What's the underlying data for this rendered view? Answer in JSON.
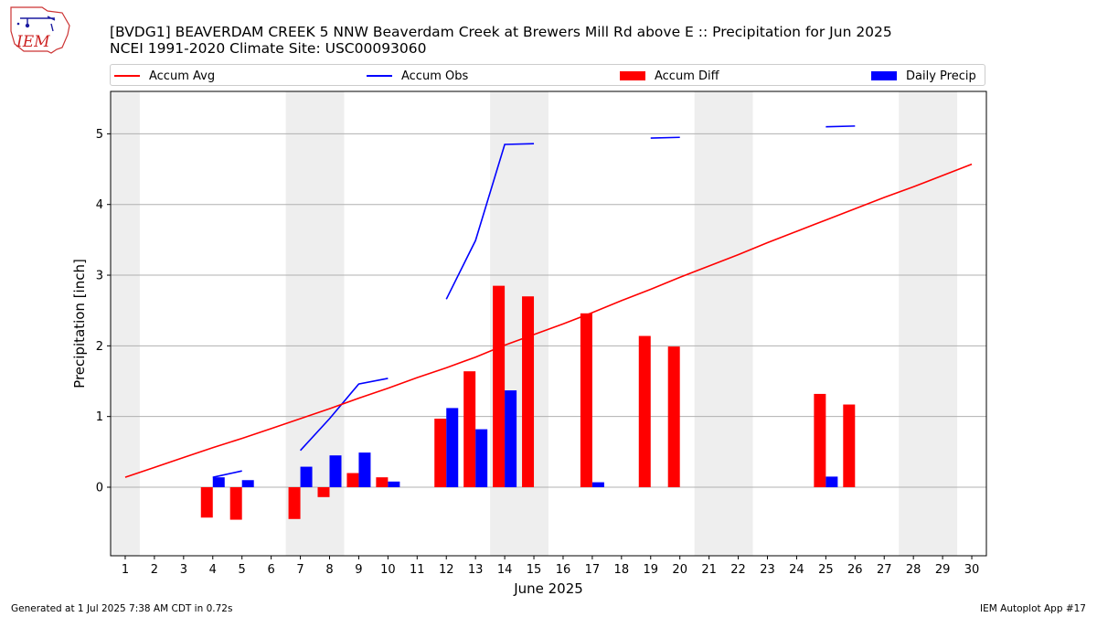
{
  "header": {
    "title_line1": "[BVDG1] BEAVERDAM CREEK 5 NNW Beaverdam Creek at Brewers Mill Rd above E :: Precipitation for Jun 2025",
    "title_line2": "NCEI 1991-2020 Climate Site: USC00093060",
    "logo_text": "IEM"
  },
  "footer": {
    "left": "Generated at 1 Jul 2025 7:38 AM CDT in 0.72s",
    "right": "IEM Autoplot App #17"
  },
  "colors": {
    "avg": "#ff0000",
    "obs": "#0000ff",
    "diff": "#ff0000",
    "daily": "#0000ff",
    "weekend": "#eeeeee",
    "grid": "#b0b0b0"
  },
  "chart_data": {
    "type": "bar",
    "xlabel": "June 2025",
    "ylabel": "Precipitation [inch]",
    "xlim": [
      0.5,
      30.5
    ],
    "ylim": [
      -0.97,
      5.6
    ],
    "x": [
      1,
      2,
      3,
      4,
      5,
      6,
      7,
      8,
      9,
      10,
      11,
      12,
      13,
      14,
      15,
      16,
      17,
      18,
      19,
      20,
      21,
      22,
      23,
      24,
      25,
      26,
      27,
      28,
      29,
      30
    ],
    "xticks": [
      "1",
      "2",
      "3",
      "4",
      "5",
      "6",
      "7",
      "8",
      "9",
      "10",
      "11",
      "12",
      "13",
      "14",
      "15",
      "16",
      "17",
      "18",
      "19",
      "20",
      "21",
      "22",
      "23",
      "24",
      "25",
      "26",
      "27",
      "28",
      "29",
      "30"
    ],
    "yticks": [
      0,
      1,
      2,
      3,
      4,
      5
    ],
    "grid": "y-major",
    "legend_position": "top",
    "weekend_shading": [
      [
        0.5,
        1.5
      ],
      [
        6.5,
        8.5
      ],
      [
        13.5,
        15.5
      ],
      [
        20.5,
        22.5
      ],
      [
        27.5,
        29.5
      ]
    ],
    "series": [
      {
        "name": "Accum Avg",
        "kind": "line",
        "values": [
          0.14,
          0.28,
          0.42,
          0.56,
          0.69,
          0.83,
          0.97,
          1.11,
          1.26,
          1.4,
          1.55,
          1.69,
          1.84,
          2.01,
          2.16,
          2.31,
          2.47,
          2.64,
          2.8,
          2.97,
          3.13,
          3.29,
          3.46,
          3.62,
          3.78,
          3.94,
          4.1,
          4.25,
          4.41,
          4.57
        ]
      },
      {
        "name": "Accum Obs",
        "kind": "line",
        "values": [
          null,
          null,
          null,
          0.14,
          0.23,
          null,
          0.52,
          0.97,
          1.46,
          1.54,
          null,
          2.66,
          3.49,
          4.85,
          4.86,
          null,
          null,
          null,
          4.94,
          4.95,
          null,
          null,
          null,
          null,
          5.1,
          5.11,
          null,
          null,
          null,
          null
        ]
      },
      {
        "name": "Accum Diff",
        "kind": "bar",
        "values": [
          null,
          null,
          null,
          -0.43,
          -0.46,
          null,
          -0.45,
          -0.14,
          0.2,
          0.14,
          null,
          0.97,
          1.64,
          2.85,
          2.7,
          null,
          2.46,
          null,
          2.14,
          1.99,
          null,
          null,
          null,
          null,
          1.32,
          1.17,
          null,
          null,
          null,
          null
        ]
      },
      {
        "name": "Daily Precip",
        "kind": "bar",
        "values": [
          null,
          null,
          null,
          0.14,
          0.1,
          null,
          0.29,
          0.45,
          0.49,
          0.08,
          null,
          1.12,
          0.82,
          1.37,
          null,
          null,
          0.07,
          null,
          null,
          null,
          null,
          null,
          null,
          null,
          0.15,
          null,
          null,
          null,
          null,
          null
        ]
      }
    ]
  }
}
